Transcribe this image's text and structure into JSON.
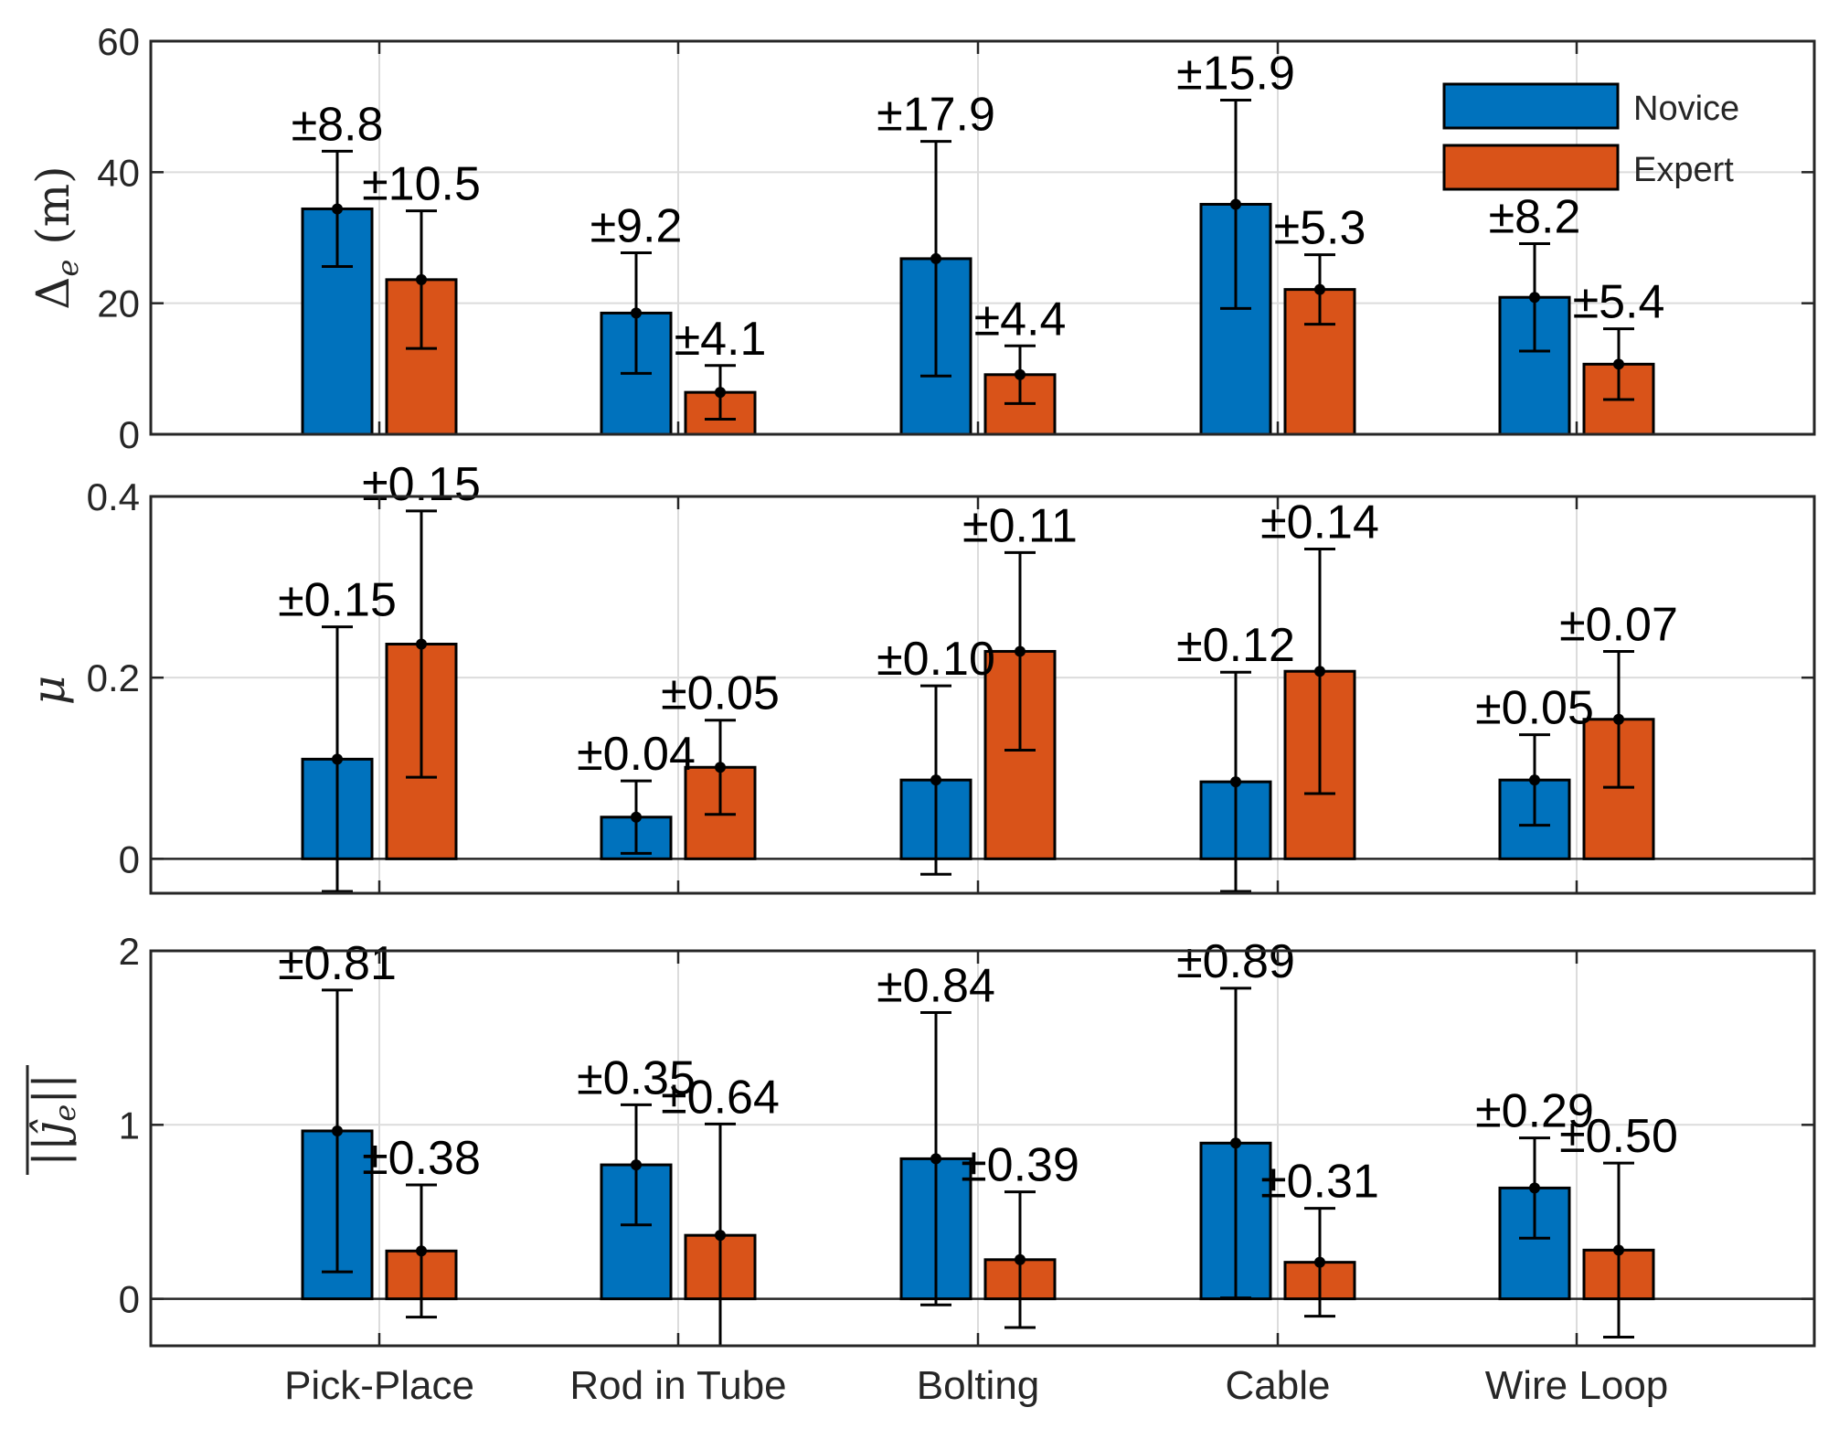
{
  "chart_data": {
    "type": "bar",
    "categories": [
      "Pick-Place",
      "Rod in Tube",
      "Bolting",
      "Cable",
      "Wire Loop"
    ],
    "legend": [
      {
        "name": "Novice",
        "color": "#0072BD"
      },
      {
        "name": "Expert",
        "color": "#D95319"
      }
    ],
    "legend_position": "top-right",
    "grid": true,
    "panels": [
      {
        "ylabel": "Δe (m)",
        "ylim": [
          0,
          60
        ],
        "yticks": [
          0,
          20,
          40,
          60
        ],
        "series": [
          {
            "name": "Novice",
            "values": [
              34.4,
              18.5,
              26.8,
              35.1,
              20.9
            ],
            "errors": [
              8.8,
              9.2,
              17.9,
              15.9,
              8.2
            ],
            "error_labels": [
              "±8.8",
              "±9.2",
              "±17.9",
              "±15.9",
              "±8.2"
            ]
          },
          {
            "name": "Expert",
            "values": [
              23.6,
              6.4,
              9.1,
              22.1,
              10.7
            ],
            "errors": [
              10.5,
              4.1,
              4.4,
              5.3,
              5.4
            ],
            "error_labels": [
              "±10.5",
              "±4.1",
              "±4.4",
              "±5.3",
              "±5.4"
            ]
          }
        ]
      },
      {
        "ylabel": "μ",
        "ylim": [
          -0.038,
          0.4
        ],
        "yticks": [
          0,
          0.2,
          0.4
        ],
        "ytick_labels": [
          "0",
          "0.2",
          "0.4"
        ],
        "series": [
          {
            "name": "Novice",
            "values": [
              0.11,
              0.046,
              0.087,
              0.085,
              0.087
            ],
            "errors": [
              0.146,
              0.04,
              0.104,
              0.121,
              0.05
            ],
            "error_labels": [
              "±0.15",
              "±0.04",
              "±0.10",
              "±0.12",
              "±0.05"
            ]
          },
          {
            "name": "Expert",
            "values": [
              0.237,
              0.101,
              0.229,
              0.207,
              0.154
            ],
            "errors": [
              0.147,
              0.052,
              0.109,
              0.135,
              0.075
            ],
            "error_labels": [
              "±0.15",
              "±0.05",
              "±0.11",
              "±0.14",
              "±0.07"
            ]
          }
        ]
      },
      {
        "ylabel": "||ĵe||",
        "ylim": [
          -0.27,
          2
        ],
        "yticks": [
          0,
          1,
          2
        ],
        "series": [
          {
            "name": "Novice",
            "values": [
              0.965,
              0.77,
              0.805,
              0.895,
              0.637
            ],
            "errors": [
              0.81,
              0.345,
              0.84,
              0.89,
              0.288
            ],
            "error_labels": [
              "±0.81",
              "±0.35",
              "±0.84",
              "±0.89",
              "±0.29"
            ]
          },
          {
            "name": "Expert",
            "values": [
              0.275,
              0.365,
              0.225,
              0.21,
              0.28
            ],
            "errors": [
              0.38,
              0.64,
              0.39,
              0.31,
              0.5
            ],
            "error_labels": [
              "±0.38",
              "±0.64",
              "±0.39",
              "±0.31",
              "±0.50"
            ]
          }
        ]
      }
    ]
  }
}
